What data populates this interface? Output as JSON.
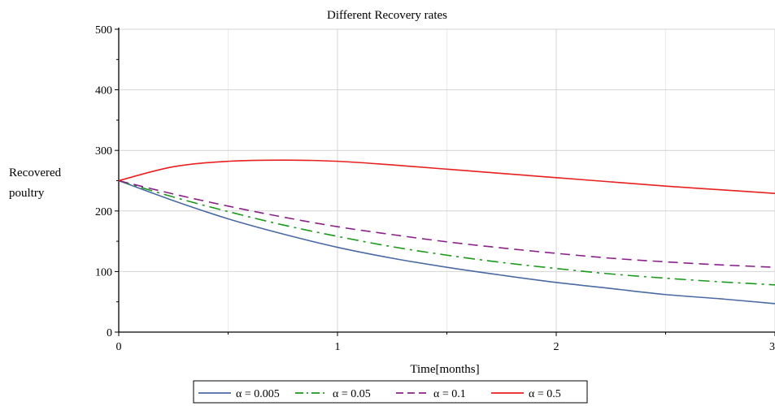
{
  "chart_data": {
    "type": "line",
    "title": "Different Recovery rates",
    "xlabel": "Time[months]",
    "ylabel_lines": [
      "Recovered",
      "poultry"
    ],
    "xlim": [
      0,
      3
    ],
    "ylim": [
      0,
      500
    ],
    "x_ticks": [
      0,
      1,
      2,
      3
    ],
    "x_tick_labels": [
      "0",
      "1",
      "2",
      "3"
    ],
    "y_ticks": [
      0,
      100,
      200,
      300,
      400,
      500
    ],
    "y_tick_labels": [
      "0",
      "100",
      "200",
      "300",
      "400",
      "500"
    ],
    "grid": true,
    "legend_position": "bottom",
    "series": [
      {
        "name": "α = 0.005",
        "color": "#4a6aa5",
        "dash": "solid",
        "x": [
          0,
          0.25,
          0.5,
          0.75,
          1.0,
          1.25,
          1.5,
          1.75,
          2.0,
          2.25,
          2.5,
          2.75,
          3.0
        ],
        "y": [
          250,
          217,
          187,
          162,
          140,
          122,
          107,
          94,
          82,
          72,
          62,
          55,
          47
        ]
      },
      {
        "name": "α = 0.05",
        "color": "#1a9a1a",
        "dash": "dashdot",
        "x": [
          0,
          0.25,
          0.5,
          0.75,
          1.0,
          1.25,
          1.5,
          1.75,
          2.0,
          2.25,
          2.5,
          2.75,
          3.0
        ],
        "y": [
          250,
          223,
          199,
          177,
          158,
          141,
          127,
          115,
          105,
          96,
          89,
          83,
          78
        ]
      },
      {
        "name": "α = 0.1",
        "color": "#8a228a",
        "dash": "dashed",
        "x": [
          0,
          0.25,
          0.5,
          0.75,
          1.0,
          1.25,
          1.5,
          1.75,
          2.0,
          2.25,
          2.5,
          2.75,
          3.0
        ],
        "y": [
          250,
          228,
          208,
          190,
          174,
          161,
          149,
          139,
          130,
          122,
          116,
          111,
          107
        ]
      },
      {
        "name": "α = 0.5",
        "color": "#e8201e",
        "dash": "solid",
        "x": [
          0,
          0.25,
          0.5,
          0.75,
          1.0,
          1.25,
          1.5,
          1.75,
          2.0,
          2.25,
          2.5,
          2.75,
          3.0
        ],
        "y": [
          250,
          273,
          282,
          284,
          282,
          276,
          269,
          262,
          255,
          248,
          241,
          235,
          229
        ]
      }
    ]
  }
}
